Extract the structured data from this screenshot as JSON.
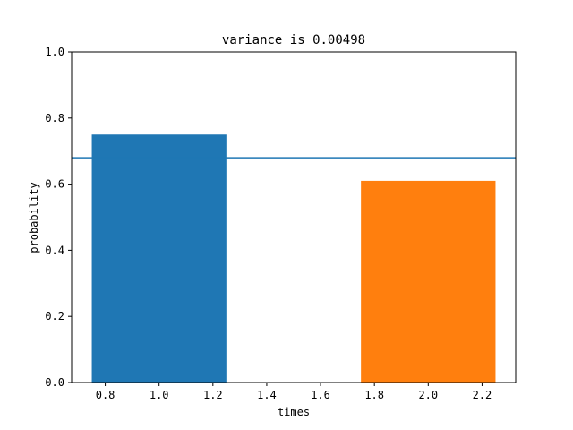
{
  "chart_data": {
    "type": "bar",
    "title": "variance is 0.00498",
    "xlabel": "times",
    "ylabel": "probability",
    "xlim": [
      0.675,
      2.325
    ],
    "ylim": [
      0,
      1.0
    ],
    "xticks": [
      0.8,
      1.0,
      1.2,
      1.4,
      1.6,
      1.8,
      2.0,
      2.2
    ],
    "yticks": [
      0.0,
      0.2,
      0.4,
      0.6,
      0.8,
      1.0
    ],
    "bar_width": 0.5,
    "bars": [
      {
        "x": 1.0,
        "value": 0.75,
        "color": "#1f77b4"
      },
      {
        "x": 2.0,
        "value": 0.61,
        "color": "#ff7f0e"
      }
    ],
    "hline": {
      "y": 0.68,
      "color": "#1f77b4"
    },
    "grid": false,
    "legend": "none"
  }
}
